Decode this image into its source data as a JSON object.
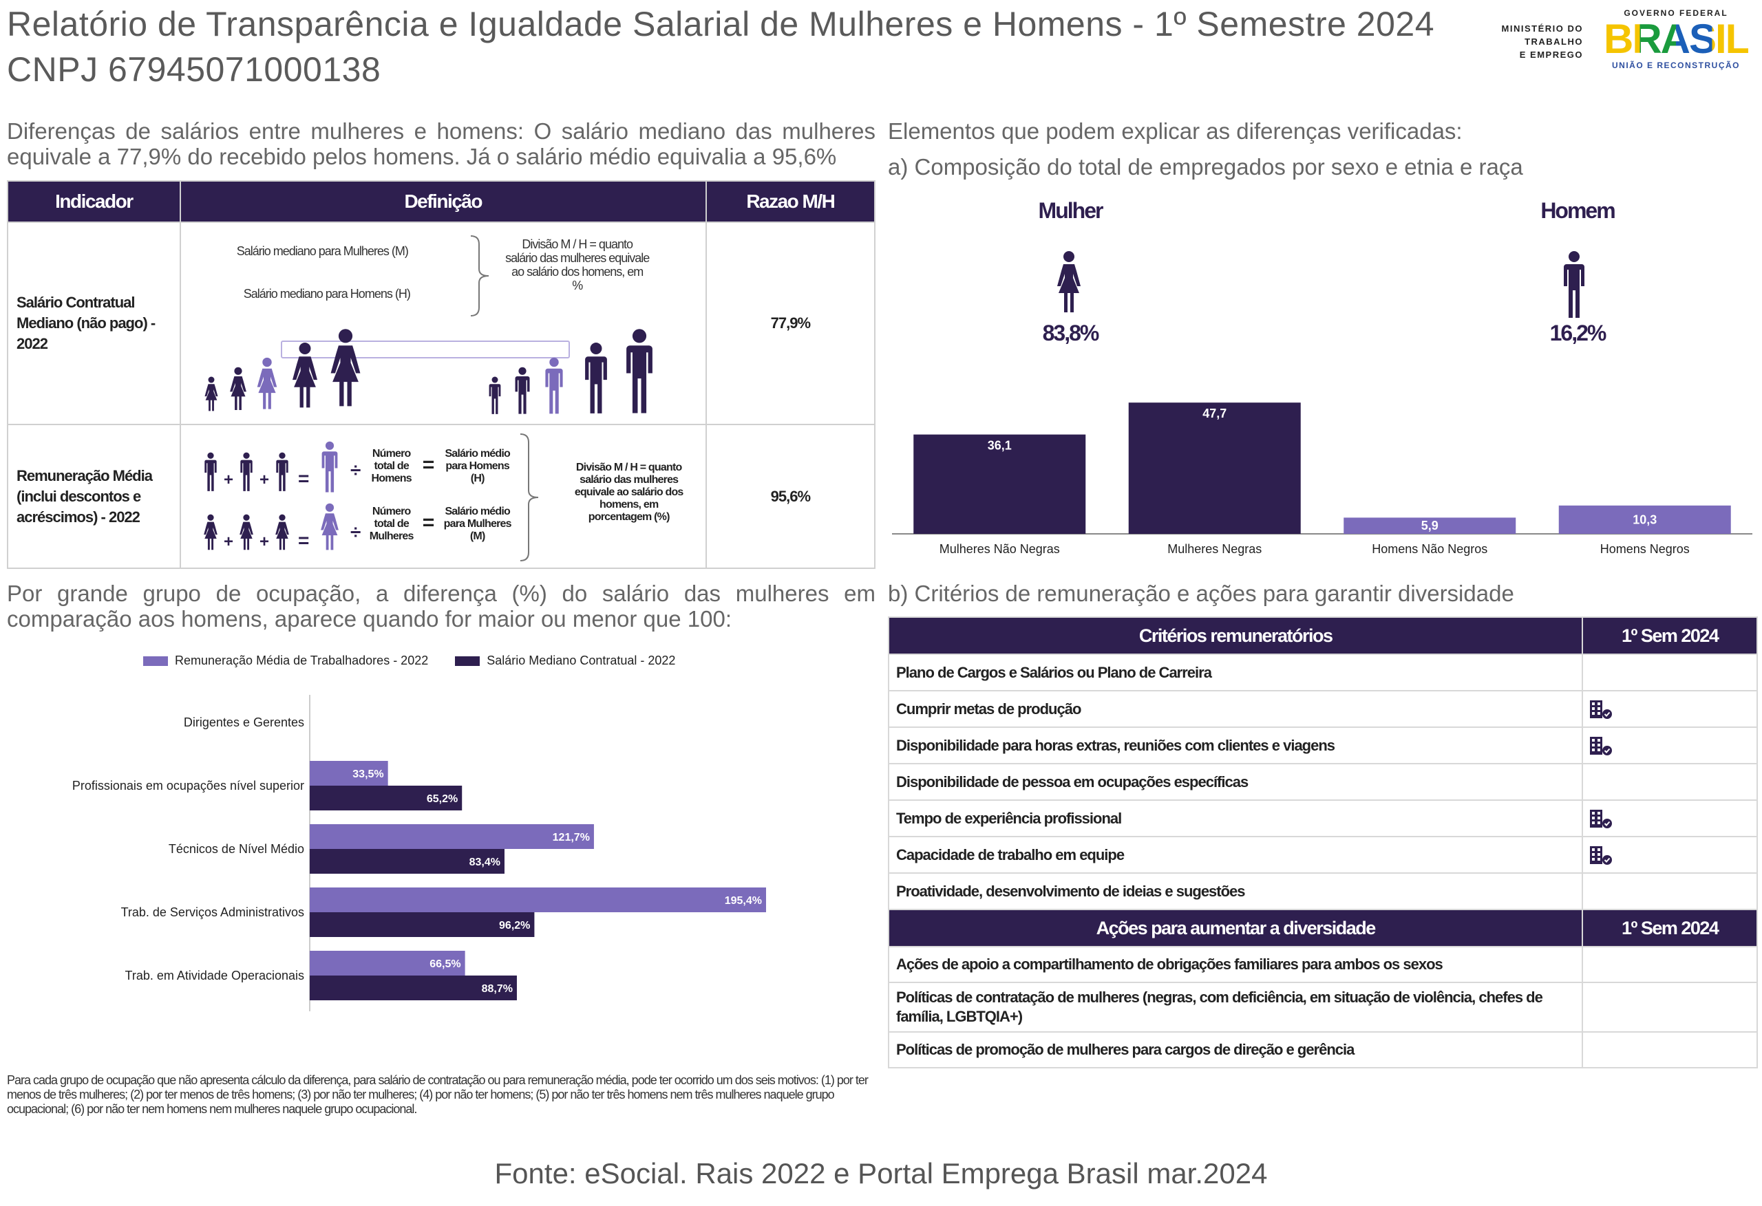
{
  "header": {
    "title_line1": "Relatório de Transparência e Igualdade Salarial de Mulheres e Homens - 1º Semestre 2024",
    "title_line2": "CNPJ 67945071000138",
    "ministry": "MINISTÉRIO DO\nTRABALHO\nE EMPREGO",
    "gov_top": "GOVERNO FEDERAL",
    "gov_word": "BRASIL",
    "gov_bottom": "UNIÃO E RECONSTRUÇÃO"
  },
  "left_top": {
    "intro": "Diferenças de salários entre mulheres e homens: O salário mediano das mulheres equivale a 77,9% do recebido pelos homens. Já o salário médio equivalia a 95,6%",
    "table": {
      "headers": [
        "Indicador",
        "Definição",
        "Razao M/H"
      ],
      "row1": {
        "label": "Salário Contratual Mediano (não pago) - 2022",
        "women_text": "Salário mediano para Mulheres (M)",
        "men_text": "Salário mediano para Homens (H)",
        "division_text": "Divisão M / H = quanto salário das mulheres equivale ao salário dos homens, em %",
        "ratio": "77,9%"
      },
      "row2": {
        "label": "Remuneração Média (inclui descontos e acréscimos) - 2022",
        "total_men": "Número total de Homens",
        "avg_men": "Salário médio para Homens (H)",
        "total_women": "Número total de Mulheres",
        "avg_women": "Salário médio para Mulheres (M)",
        "division_text": "Divisão M / H = quanto salário das mulheres equivale ao salário dos homens, em porcentagem (%)",
        "ratio": "95,6%"
      }
    }
  },
  "right_top": {
    "title": "Elementos que podem explicar as diferenças verificadas:",
    "subtitle": "a) Composição do total de empregados por sexo e etnia e raça",
    "women_label": "Mulher",
    "men_label": "Homem",
    "women_pct": "83,8%",
    "men_pct": "16,2%"
  },
  "chart_data": [
    {
      "type": "bar",
      "categories": [
        "Mulheres Não Negras",
        "Mulheres Negras",
        "Homens Não Negros",
        "Homens Negros"
      ],
      "values": [
        36.1,
        47.7,
        5.9,
        10.3
      ],
      "value_labels": [
        "36,1",
        "47,7",
        "5,9",
        "10,3"
      ],
      "colors": [
        "#2e1f4f",
        "#2e1f4f",
        "#7b6bbb",
        "#7b6bbb"
      ],
      "ylim": [
        0,
        50
      ]
    },
    {
      "type": "bar",
      "orientation": "horizontal",
      "categories": [
        "Dirigentes e Gerentes",
        "Profissionais em ocupações nível superior",
        "Técnicos de Nível Médio",
        "Trab. de Serviços Administrativos",
        "Trab. em Atividade Operacionais"
      ],
      "series": [
        {
          "name": "Remuneração Média de Trabalhadores - 2022",
          "color": "#7b6bbb",
          "values": [
            null,
            33.5,
            121.7,
            195.4,
            66.5
          ],
          "labels": [
            "",
            "33,5%",
            "121,7%",
            "195,4%",
            "66,5%"
          ]
        },
        {
          "name": "Salário Mediano Contratual - 2022",
          "color": "#2e1f4f",
          "values": [
            null,
            65.2,
            83.4,
            96.2,
            88.7
          ],
          "labels": [
            "",
            "65,2%",
            "83,4%",
            "96,2%",
            "88,7%"
          ]
        }
      ],
      "xlim": [
        0,
        200
      ],
      "legend": "top",
      "title": "Por grande grupo de ocupação, a diferença (%) do salário das mulheres em comparação aos homens, aparece quando for maior ou menor que 100:"
    }
  ],
  "criteria": {
    "title": "b) Critérios de remuneração e ações para garantir diversidade",
    "header1": "Critérios remuneratórios",
    "header_sem": "1º Sem 2024",
    "items": [
      {
        "label": "Plano de Cargos e Salários ou Plano de Carreira",
        "icon": false
      },
      {
        "label": "Cumprir metas de produção",
        "icon": true
      },
      {
        "label": "Disponibilidade para horas extras, reuniões com clientes e viagens",
        "icon": true
      },
      {
        "label": "Disponibilidade de pessoa em ocupações específicas",
        "icon": false
      },
      {
        "label": "Tempo de experiência profissional",
        "icon": true
      },
      {
        "label": "Capacidade de trabalho em equipe",
        "icon": true
      },
      {
        "label": "Proatividade, desenvolvimento de ideias e sugestões",
        "icon": false
      }
    ],
    "header2": "Ações para aumentar a diversidade",
    "header_sem2": "1º Sem 2024",
    "actions": [
      {
        "label": "Ações de apoio a compartilhamento de obrigações familiares para ambos os sexos"
      },
      {
        "label": "Políticas de contratação de mulheres (negras, com deficiência, em situação de violência, chefes de família, LGBTQIA+)"
      },
      {
        "label": "Políticas de promoção de mulheres para cargos de direção e gerência"
      }
    ]
  },
  "footnote": "Para cada grupo de ocupação que não apresenta cálculo da diferença, para salário de contratação ou para remuneração média, pode ter ocorrido um dos seis motivos: (1) por ter menos de três mulheres; (2) por ter menos de três homens; (3) por não ter mulheres; (4) por não ter homens; (5) por não ter três homens nem três mulheres naquele grupo ocupacional; (6) por não ter nem homens nem mulheres naquele grupo ocupacional.",
  "source": "Fonte: eSocial. Rais 2022 e Portal Emprega Brasil mar.2024"
}
